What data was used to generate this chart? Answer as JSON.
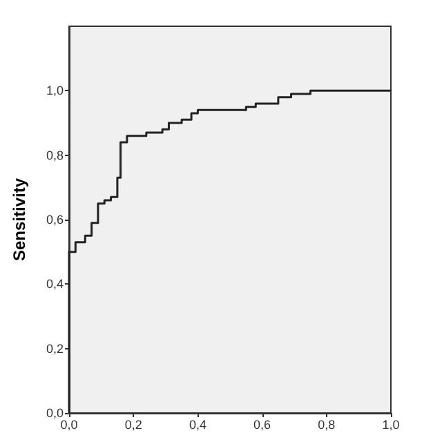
{
  "chart_data": {
    "type": "step",
    "ylabel": "Sensitivity",
    "x": [
      0,
      0,
      0.02,
      0.05,
      0.07,
      0.09,
      0.11,
      0.13,
      0.15,
      0.16,
      0.18,
      0.24,
      0.29,
      0.31,
      0.35,
      0.38,
      0.4,
      0.55,
      0.58,
      0.65,
      0.69,
      0.75,
      1.0
    ],
    "series": [
      {
        "color": "#222222",
        "values": [
          0,
          0.5,
          0.53,
          0.55,
          0.59,
          0.65,
          0.66,
          0.67,
          0.73,
          0.84,
          0.86,
          0.87,
          0.88,
          0.9,
          0.91,
          0.93,
          0.94,
          0.95,
          0.96,
          0.98,
          0.99,
          1.0,
          1.0
        ]
      }
    ],
    "xlim": [
      0,
      1
    ],
    "ylim": [
      0,
      1.2
    ],
    "xticks": [
      {
        "value": 0,
        "label": "0,0"
      },
      {
        "value": 0.2,
        "label": "0,2"
      },
      {
        "value": 0.4,
        "label": "0,4"
      },
      {
        "value": 0.6,
        "label": "0,6"
      },
      {
        "value": 0.8,
        "label": "0,8"
      },
      {
        "value": 1,
        "label": "1,0"
      }
    ],
    "yticks": [
      {
        "value": 0,
        "label": "0,0"
      },
      {
        "value": 0.2,
        "label": "0,2"
      },
      {
        "value": 0.4,
        "label": "0,4"
      },
      {
        "value": 0.6,
        "label": "0,6"
      },
      {
        "value": 0.8,
        "label": "0,8"
      },
      {
        "value": 1,
        "label": "1,0"
      }
    ],
    "grid": false,
    "marker": "none",
    "line_style": "solid"
  }
}
